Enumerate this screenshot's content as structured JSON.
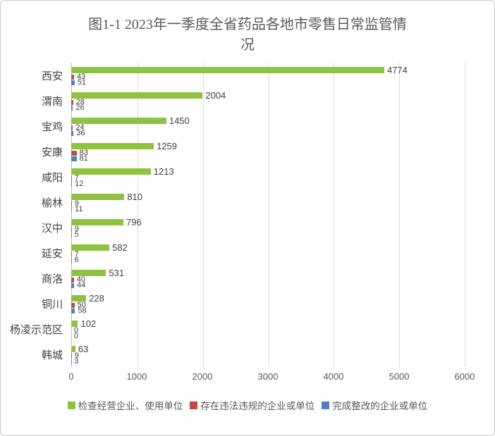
{
  "title": {
    "line1": "图1-1 2023年一季度全省药品各地市零售日常监管情",
    "line2": "况"
  },
  "chart_data": {
    "type": "bar",
    "orientation": "horizontal",
    "title": "图1-1 2023年一季度全省药品各地市零售日常监管情况",
    "categories": [
      "西安",
      "渭南",
      "宝鸡",
      "安康",
      "咸阳",
      "榆林",
      "汉中",
      "延安",
      "商洛",
      "铜川",
      "杨凌示范区",
      "韩城"
    ],
    "series": [
      {
        "name": "检查经营企业、使用单位",
        "color": "#8fc241",
        "values": [
          4774,
          2004,
          1450,
          1259,
          1213,
          810,
          796,
          582,
          531,
          228,
          102,
          63
        ]
      },
      {
        "name": "存在违法违规的企业或单位",
        "color": "#be4b48",
        "values": [
          43,
          28,
          24,
          83,
          7,
          9,
          9,
          7,
          40,
          50,
          0,
          9
        ]
      },
      {
        "name": "完成整改的企业或单位",
        "color": "#4e81bd",
        "values": [
          51,
          26,
          36,
          81,
          12,
          11,
          5,
          6,
          44,
          58,
          0,
          3
        ]
      }
    ],
    "x_axis": {
      "ticks": [
        0,
        1000,
        2000,
        3000,
        4000,
        5000,
        6000
      ],
      "max": 6000
    },
    "grid": true,
    "legend_position": "bottom",
    "data_labels": true
  }
}
